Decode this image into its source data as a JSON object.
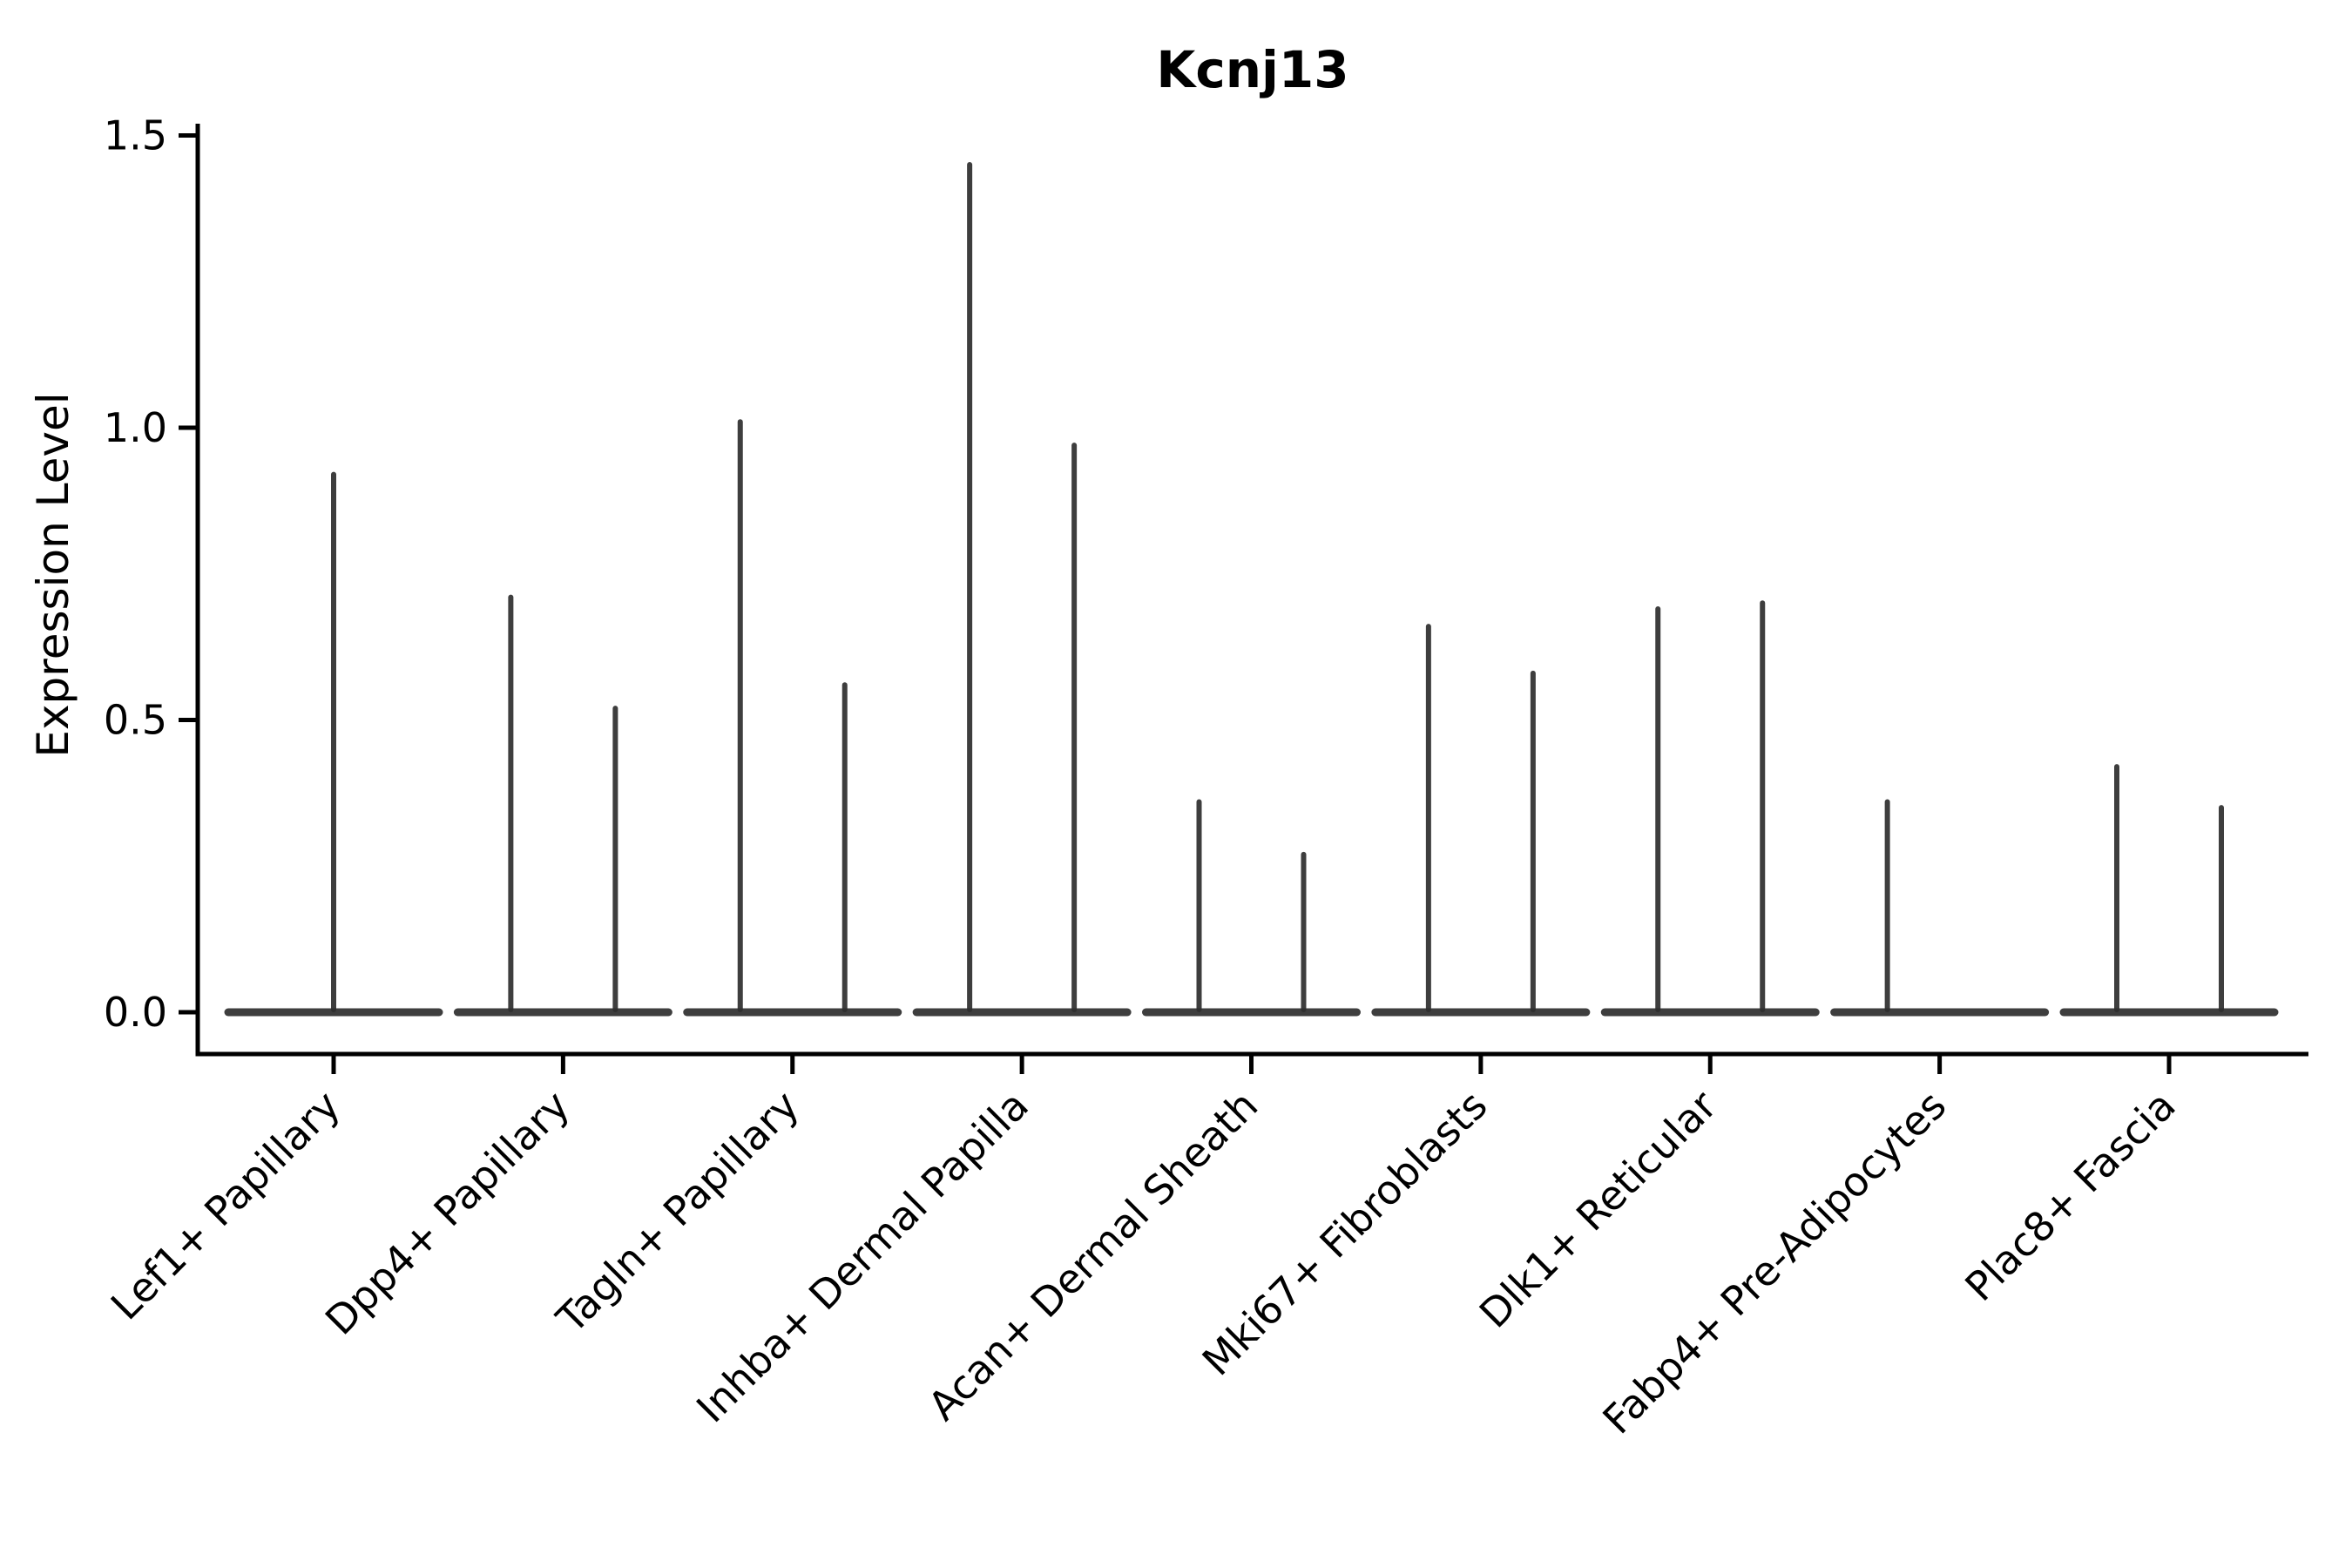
{
  "figure": {
    "title": "Kcnj13",
    "ylabel": "Expression Level",
    "xlabel": ""
  },
  "colors": {
    "background": "#ffffff",
    "axis": "#000000",
    "violin": "#2e2e2e",
    "text": "#000000"
  },
  "chart_data": {
    "type": "violin",
    "title": "Kcnj13",
    "ylabel": "Expression Level",
    "xlabel": "",
    "ylim": [
      0,
      1.5
    ],
    "yticks": [
      0.0,
      0.5,
      1.0,
      1.5
    ],
    "ytick_labels": [
      "0.0",
      "0.5",
      "1.0",
      "1.5"
    ],
    "x_tick_rotation_deg": 45,
    "grid": false,
    "legend": "none",
    "description": "Collapsed violins: wide flat base at expression 0 with a thin central spike up to the max expression value. Most categories contain two side-by-side violins (left/right); Lef1+ Papillary has one full-width centered violin; Fabp4+ Pre-Adipocytes has a left spike only (right violin flat at 0).",
    "categories": [
      "Lef1+ Papillary",
      "Dpp4+ Papillary",
      "Tagln+ Papillary",
      "Inhba+ Dermal Papilla",
      "Acan+ Dermal Sheath",
      "Mki67+ Fibroblasts",
      "Dlk1+ Reticular",
      "Fabp4+ Pre-Adipocytes",
      "Plac8+ Fascia"
    ],
    "groups": [
      {
        "label": "Lef1+ Papillary",
        "violins": [
          {
            "align": "center",
            "peak": 0.92
          }
        ]
      },
      {
        "label": "Dpp4+ Papillary",
        "violins": [
          {
            "align": "left",
            "peak": 0.71
          },
          {
            "align": "right",
            "peak": 0.52
          }
        ]
      },
      {
        "label": "Tagln+ Papillary",
        "violins": [
          {
            "align": "left",
            "peak": 1.01
          },
          {
            "align": "right",
            "peak": 0.56
          }
        ]
      },
      {
        "label": "Inhba+ Dermal Papilla",
        "violins": [
          {
            "align": "left",
            "peak": 1.45
          },
          {
            "align": "right",
            "peak": 0.97
          }
        ]
      },
      {
        "label": "Acan+ Dermal Sheath",
        "violins": [
          {
            "align": "left",
            "peak": 0.36
          },
          {
            "align": "right",
            "peak": 0.27
          }
        ]
      },
      {
        "label": "Mki67+ Fibroblasts",
        "violins": [
          {
            "align": "left",
            "peak": 0.66
          },
          {
            "align": "right",
            "peak": 0.58
          }
        ]
      },
      {
        "label": "Dlk1+ Reticular",
        "violins": [
          {
            "align": "left",
            "peak": 0.69
          },
          {
            "align": "right",
            "peak": 0.7
          }
        ]
      },
      {
        "label": "Fabp4+ Pre-Adipocytes",
        "violins": [
          {
            "align": "left",
            "peak": 0.36
          },
          {
            "align": "right",
            "peak": 0.0
          }
        ]
      },
      {
        "label": "Plac8+ Fascia",
        "violins": [
          {
            "align": "left",
            "peak": 0.42
          },
          {
            "align": "right",
            "peak": 0.35
          }
        ]
      }
    ]
  }
}
